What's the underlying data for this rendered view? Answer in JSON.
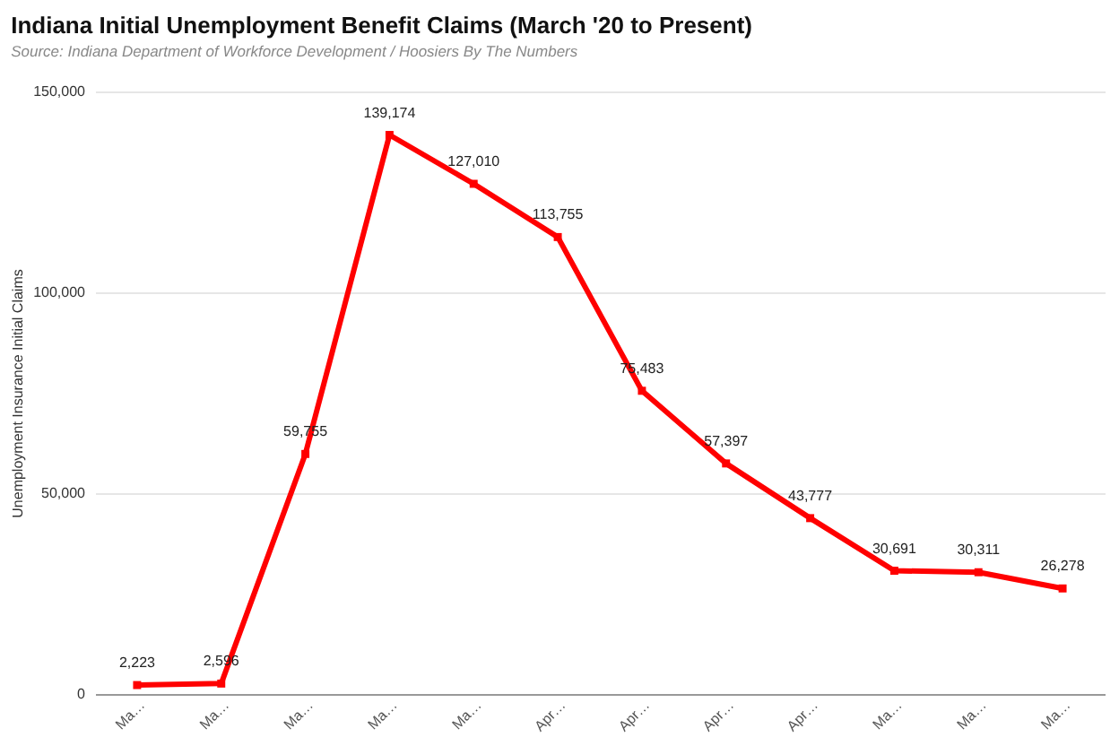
{
  "chart_data": {
    "type": "line",
    "title": "Indiana Initial Unemployment Benefit Claims (March '20 to Present)",
    "subtitle": "Source: Indiana Department of Workforce Development / Hoosiers By The Numbers",
    "ylabel": "Unemployment Insurance Initial Claims",
    "categories": [
      "Ma…",
      "Ma…",
      "Ma…",
      "Ma…",
      "Ma…",
      "Apr…",
      "Apr…",
      "Apr…",
      "Apr…",
      "Ma…",
      "Ma…",
      "Ma…"
    ],
    "series": [
      {
        "color": "#ff0000",
        "values": [
          2223,
          2596,
          59755,
          139174,
          127010,
          113755,
          75483,
          57397,
          43777,
          30691,
          30311,
          26278
        ],
        "value_labels": [
          "2,223",
          "2,596",
          "59,755",
          "139,174",
          "127,010",
          "113,755",
          "75,483",
          "57,397",
          "43,777",
          "30,691",
          "30,311",
          "26,278"
        ]
      }
    ],
    "ylim": [
      0,
      150000
    ],
    "yticks": [
      0,
      {
        "value": 50000,
        "label": "50,000"
      },
      {
        "value": 100000,
        "label": "100,000"
      },
      {
        "value": 150000,
        "label": "150,000"
      }
    ],
    "grid": "y",
    "marker": "square",
    "line_style": "solid"
  }
}
